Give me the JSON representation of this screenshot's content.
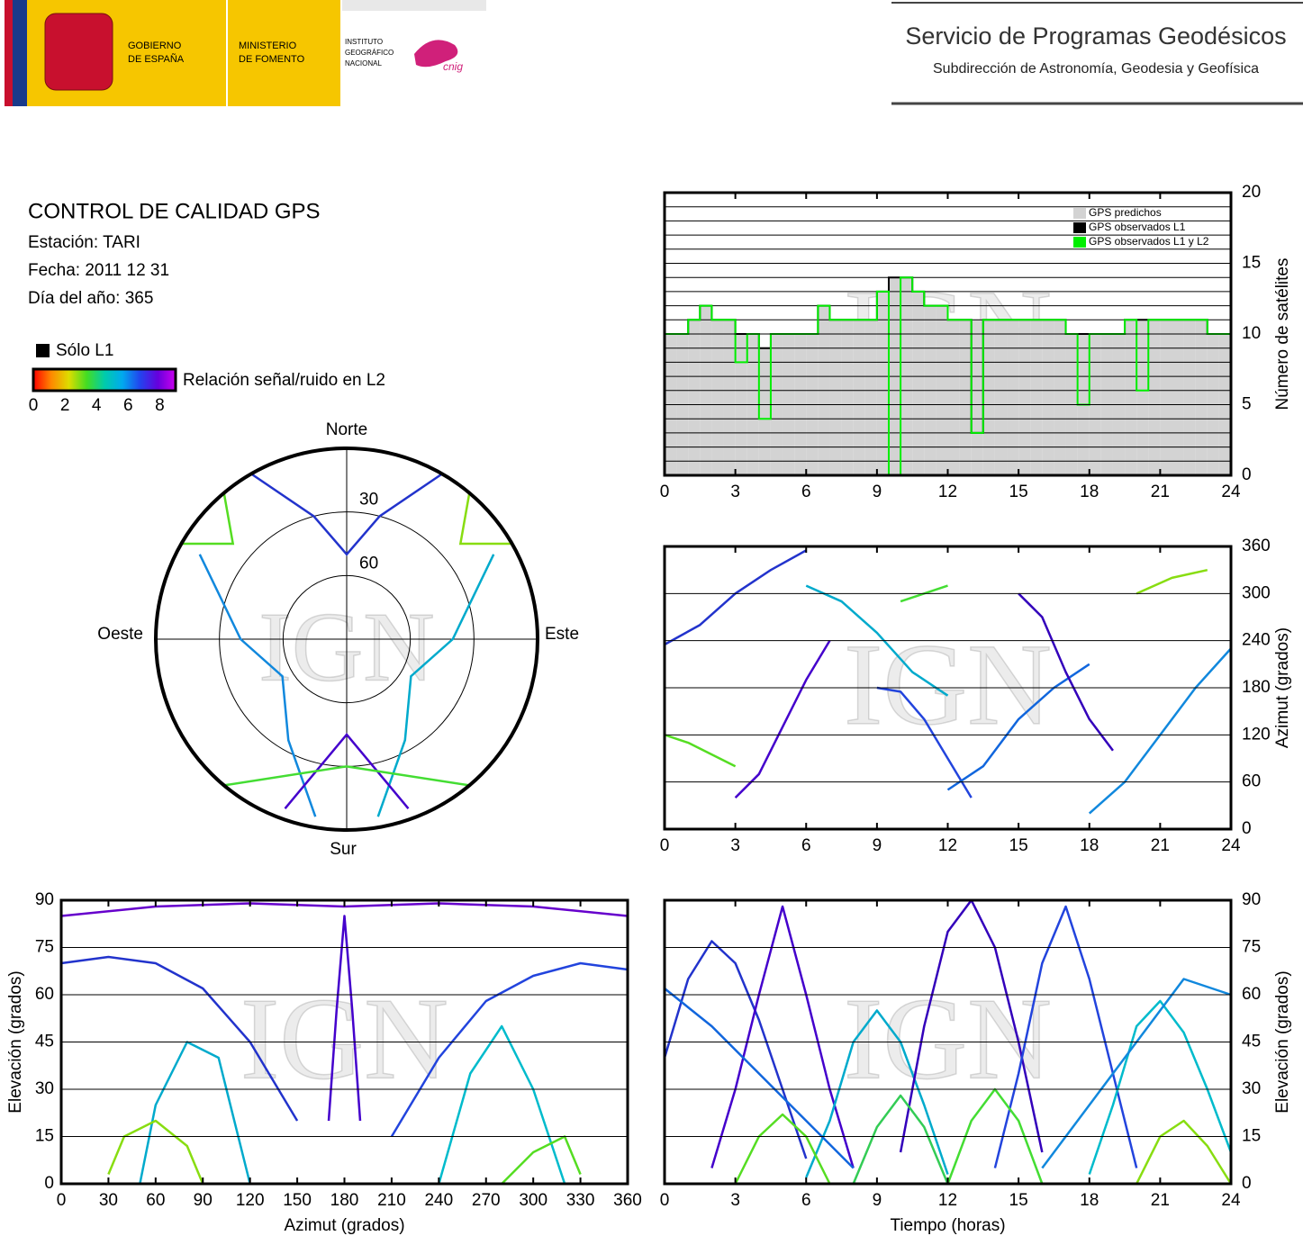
{
  "header": {
    "gobierno": [
      "GOBIERNO",
      "DE ESPAÑA"
    ],
    "ministerio": [
      "MINISTERIO",
      "DE FOMENTO"
    ],
    "instituto": [
      "INSTITUTO",
      "GEOGRÁFICO",
      "NACIONAL"
    ],
    "cnig": "cnig",
    "service": "Servicio de Programas Geodésicos",
    "subservice": "Subdirección de Astronomía, Geodesia y Geofísica"
  },
  "info": {
    "title": "CONTROL DE CALIDAD GPS",
    "station": "Estación: TARI",
    "date": "Fecha: 2011 12 31",
    "doy": "Día del año: 365"
  },
  "legend": {
    "l1_only": "Sólo L1",
    "snr_label": "Relación señal/ruido en L2",
    "snr_lim": [
      0,
      9
    ],
    "snr_ticks": [
      0,
      2,
      4,
      6,
      8
    ],
    "snr_colors": [
      "#ff0000",
      "#ff8800",
      "#dddd00",
      "#44dd22",
      "#00ccaa",
      "#00aaee",
      "#2244ee",
      "#6600dd",
      "#cc00ee"
    ]
  },
  "watermark": "IGN",
  "chart_data": [
    {
      "type": "step",
      "y_label": "Número de satélites",
      "x": [
        0,
        0.5,
        1,
        1.5,
        2,
        2.5,
        3,
        3.5,
        4,
        4.5,
        5,
        5.5,
        6,
        6.5,
        7,
        7.5,
        8,
        8.5,
        9,
        9.5,
        10,
        10.5,
        11,
        11.5,
        12,
        12.5,
        13,
        13.5,
        14,
        14.5,
        15,
        15.5,
        16,
        16.5,
        17,
        17.5,
        18,
        18.5,
        19,
        19.5,
        20,
        20.5,
        21,
        21.5,
        22,
        22.5,
        23,
        23.5,
        24
      ],
      "series": [
        {
          "name": "GPS predichos",
          "color": "#d3d3d3",
          "values": [
            10,
            10,
            11,
            12,
            11,
            11,
            10,
            10,
            9,
            10,
            10,
            10,
            10,
            12,
            11,
            11,
            11,
            11,
            13,
            14,
            14,
            13,
            12,
            12,
            11,
            11,
            11,
            11,
            11,
            11,
            11,
            11,
            11,
            11,
            10,
            10,
            10,
            10,
            10,
            11,
            11,
            11,
            11,
            11,
            11,
            11,
            10,
            10,
            10
          ]
        },
        {
          "name": "GPS observados L1",
          "color": "#000000",
          "values": [
            10,
            10,
            11,
            12,
            11,
            11,
            10,
            10,
            9,
            10,
            10,
            10,
            10,
            12,
            11,
            11,
            11,
            11,
            13,
            14,
            14,
            13,
            12,
            12,
            11,
            11,
            3,
            11,
            11,
            11,
            11,
            11,
            11,
            11,
            10,
            10,
            10,
            10,
            10,
            11,
            11,
            11,
            11,
            11,
            11,
            11,
            10,
            10,
            10
          ]
        },
        {
          "name": "GPS observados L1 y L2",
          "color": "#00ee00",
          "values": [
            10,
            10,
            11,
            12,
            11,
            11,
            8,
            10,
            4,
            10,
            10,
            10,
            10,
            12,
            11,
            11,
            11,
            11,
            13,
            0,
            14,
            13,
            12,
            12,
            11,
            11,
            3,
            11,
            11,
            11,
            11,
            11,
            11,
            11,
            10,
            5,
            10,
            10,
            10,
            11,
            6,
            11,
            11,
            11,
            11,
            11,
            10,
            10,
            10
          ]
        }
      ],
      "xlim": [
        0,
        24
      ],
      "xticks": [
        0,
        3,
        6,
        9,
        12,
        15,
        18,
        21,
        24
      ],
      "ylim": [
        0,
        20
      ],
      "yticks": [
        0,
        5,
        10,
        15,
        20
      ],
      "minor_yticks": [
        1,
        2,
        3,
        4,
        6,
        7,
        8,
        9,
        11,
        12,
        13,
        14,
        16,
        17,
        18,
        19
      ],
      "legend": "upper right"
    },
    {
      "type": "line",
      "y_label": "Azimut (grados)",
      "xlim": [
        0,
        24
      ],
      "xticks": [
        0,
        3,
        6,
        9,
        12,
        15,
        18,
        21,
        24
      ],
      "ylim": [
        0,
        360
      ],
      "yticks": [
        0,
        60,
        120,
        180,
        240,
        300,
        360
      ],
      "series": [
        {
          "color": "#2233cc",
          "x": [
            0,
            1.5,
            3,
            4.5,
            6
          ],
          "values": [
            235,
            260,
            300,
            330,
            355
          ]
        },
        {
          "color": "#4400cc",
          "x": [
            3,
            4,
            5,
            6,
            7
          ],
          "values": [
            40,
            70,
            130,
            190,
            240
          ]
        },
        {
          "color": "#00aacc",
          "x": [
            6,
            7.5,
            9,
            10.5,
            12
          ],
          "values": [
            310,
            290,
            250,
            200,
            170
          ]
        },
        {
          "color": "#2244dd",
          "x": [
            9,
            10,
            11,
            12,
            13
          ],
          "values": [
            180,
            175,
            140,
            90,
            40
          ]
        },
        {
          "color": "#1166dd",
          "x": [
            12,
            13.5,
            15,
            16.5,
            18
          ],
          "values": [
            50,
            80,
            140,
            180,
            210
          ]
        },
        {
          "color": "#3300bb",
          "x": [
            15,
            16,
            17,
            18,
            19
          ],
          "values": [
            300,
            270,
            200,
            140,
            100
          ]
        },
        {
          "color": "#1188dd",
          "x": [
            18,
            19.5,
            21,
            22.5,
            24
          ],
          "values": [
            20,
            60,
            120,
            180,
            230
          ]
        },
        {
          "color": "#55dd22",
          "x": [
            0,
            1,
            2,
            3
          ],
          "values": [
            120,
            110,
            95,
            80
          ]
        },
        {
          "color": "#44dd33",
          "x": [
            10,
            11,
            12
          ],
          "values": [
            290,
            300,
            310
          ]
        },
        {
          "color": "#88dd11",
          "x": [
            20,
            21.5,
            23
          ],
          "values": [
            300,
            320,
            330
          ]
        }
      ]
    },
    {
      "type": "line",
      "x_label": "Tiempo (horas)",
      "y_label": "Elevación (grados)",
      "xlim": [
        0,
        24
      ],
      "xticks": [
        0,
        3,
        6,
        9,
        12,
        15,
        18,
        21,
        24
      ],
      "ylim": [
        0,
        90
      ],
      "yticks": [
        0,
        15,
        30,
        45,
        60,
        75,
        90
      ],
      "series": [
        {
          "color": "#2233cc",
          "x": [
            0,
            1,
            2,
            3,
            4,
            5,
            6
          ],
          "values": [
            40,
            65,
            77,
            70,
            52,
            30,
            8
          ]
        },
        {
          "color": "#4400cc",
          "x": [
            2,
            3,
            4,
            5,
            6,
            7,
            8
          ],
          "values": [
            5,
            30,
            60,
            88,
            60,
            30,
            5
          ]
        },
        {
          "color": "#00aacc",
          "x": [
            6,
            7,
            8,
            9,
            10,
            11,
            12
          ],
          "values": [
            2,
            20,
            45,
            55,
            45,
            25,
            3
          ]
        },
        {
          "color": "#3300bb",
          "x": [
            10,
            11,
            12,
            13,
            14,
            15,
            16
          ],
          "values": [
            10,
            50,
            80,
            90,
            75,
            45,
            10
          ]
        },
        {
          "color": "#2244dd",
          "x": [
            14,
            15,
            16,
            17,
            18,
            19,
            20
          ],
          "values": [
            5,
            35,
            70,
            88,
            65,
            35,
            5
          ]
        },
        {
          "color": "#00bbcc",
          "x": [
            18,
            19,
            20,
            21,
            22,
            23,
            24
          ],
          "values": [
            3,
            25,
            50,
            58,
            48,
            30,
            10
          ]
        },
        {
          "color": "#55dd22",
          "x": [
            3,
            4,
            5,
            6,
            7
          ],
          "values": [
            0,
            15,
            22,
            15,
            0
          ]
        },
        {
          "color": "#33cc55",
          "x": [
            8,
            9,
            10,
            11,
            12
          ],
          "values": [
            0,
            18,
            28,
            18,
            0
          ]
        },
        {
          "color": "#44dd33",
          "x": [
            12,
            13,
            14,
            15,
            16
          ],
          "values": [
            0,
            20,
            30,
            20,
            0
          ]
        },
        {
          "color": "#88dd11",
          "x": [
            20,
            21,
            22,
            23,
            24
          ],
          "values": [
            0,
            15,
            20,
            12,
            0
          ]
        },
        {
          "color": "#1166dd",
          "x": [
            0,
            2,
            4,
            6,
            8
          ],
          "values": [
            62,
            50,
            35,
            20,
            5
          ]
        },
        {
          "color": "#1188dd",
          "x": [
            16,
            18,
            20,
            22,
            24
          ],
          "values": [
            5,
            25,
            45,
            65,
            60
          ]
        }
      ]
    },
    {
      "type": "line",
      "x_label": "Azimut (grados)",
      "y_label": "Elevación (grados)",
      "xlim": [
        0,
        360
      ],
      "xticks": [
        0,
        30,
        60,
        90,
        120,
        150,
        180,
        210,
        240,
        270,
        300,
        330,
        360
      ],
      "ylim": [
        0,
        90
      ],
      "yticks": [
        0,
        15,
        30,
        45,
        60,
        75,
        90
      ],
      "series": [
        {
          "color": "#2233cc",
          "x": [
            0,
            30,
            60,
            90,
            120,
            150
          ],
          "values": [
            70,
            72,
            70,
            62,
            45,
            20
          ]
        },
        {
          "color": "#2244dd",
          "x": [
            360,
            330,
            300,
            270,
            240,
            210
          ],
          "values": [
            68,
            70,
            66,
            58,
            40,
            15
          ]
        },
        {
          "color": "#00aacc",
          "x": [
            50,
            60,
            80,
            100,
            120
          ],
          "values": [
            0,
            25,
            45,
            40,
            0
          ]
        },
        {
          "color": "#00bbcc",
          "x": [
            240,
            260,
            280,
            300,
            320
          ],
          "values": [
            0,
            35,
            50,
            30,
            0
          ]
        },
        {
          "color": "#88dd11",
          "x": [
            30,
            40,
            60,
            80,
            90
          ],
          "values": [
            3,
            15,
            20,
            12,
            0
          ]
        },
        {
          "color": "#55dd22",
          "x": [
            280,
            300,
            320,
            330
          ],
          "values": [
            0,
            10,
            15,
            3
          ]
        },
        {
          "color": "#4400cc",
          "x": [
            170,
            175,
            180,
            185,
            190
          ],
          "values": [
            20,
            55,
            85,
            55,
            20
          ]
        },
        {
          "color": "#6600cc",
          "x": [
            0,
            60,
            120,
            180,
            240,
            300,
            360
          ],
          "values": [
            85,
            88,
            89,
            88,
            89,
            88,
            85
          ]
        }
      ]
    },
    {
      "type": "polar",
      "labels": {
        "north": "Norte",
        "south": "Sur",
        "east": "Este",
        "west": "Oeste"
      },
      "rlim": [
        90,
        0
      ],
      "rticks": [
        30,
        60
      ],
      "series": [
        {
          "color": "#2233cc",
          "azimuth": [
            30,
            15,
            0,
            345,
            330
          ],
          "elevation": [
            0,
            30,
            50,
            30,
            0
          ]
        },
        {
          "color": "#00aacc",
          "azimuth": [
            60,
            90,
            120,
            150,
            170
          ],
          "elevation": [
            10,
            40,
            55,
            35,
            5
          ]
        },
        {
          "color": "#1188dd",
          "azimuth": [
            190,
            210,
            240,
            270,
            300
          ],
          "elevation": [
            5,
            35,
            55,
            40,
            10
          ]
        },
        {
          "color": "#4400cc",
          "azimuth": [
            200,
            180,
            160
          ],
          "elevation": [
            5,
            45,
            5
          ]
        },
        {
          "color": "#88dd11",
          "azimuth": [
            40,
            50,
            60
          ],
          "elevation": [
            0,
            20,
            0
          ]
        },
        {
          "color": "#55dd22",
          "azimuth": [
            300,
            310,
            320
          ],
          "elevation": [
            0,
            20,
            0
          ]
        },
        {
          "color": "#44dd33",
          "azimuth": [
            140,
            180,
            220
          ],
          "elevation": [
            0,
            30,
            0
          ]
        }
      ]
    }
  ]
}
